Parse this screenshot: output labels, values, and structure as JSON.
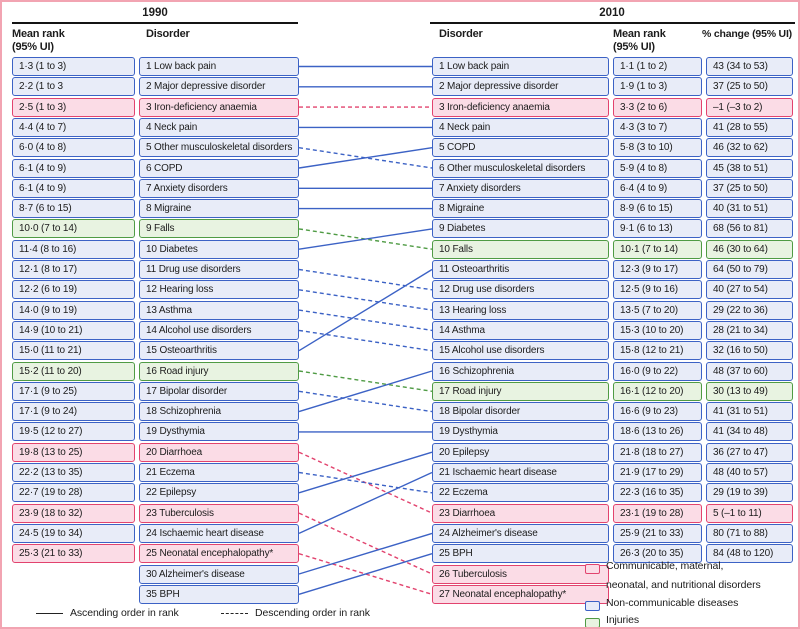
{
  "chart_data": {
    "type": "table",
    "subtype": "rank_slopegraph",
    "header": {
      "year_left": "1990",
      "year_right": "2010",
      "mean_rank": "Mean rank",
      "ui": "(95% UI)",
      "disorder": "Disorder",
      "pct_change": "% change (95% UI)"
    },
    "colors": {
      "ncd": "#3c62c5",
      "cmnn": "#e2436e",
      "inj": "#4f9b44",
      "frame": "#f2a4b2"
    },
    "rows_1990": [
      {
        "mean_rank": "1·3 (1 to 3)",
        "disorder": "1 Low back pain",
        "cat": "ncd"
      },
      {
        "mean_rank": "2·2 (1 to 3",
        "disorder": "2 Major depressive disorder",
        "cat": "ncd"
      },
      {
        "mean_rank": "2·5 (1 to 3)",
        "disorder": "3 Iron-deficiency anaemia",
        "cat": "cmnn"
      },
      {
        "mean_rank": "4·4 (4 to 7)",
        "disorder": "4 Neck pain",
        "cat": "ncd"
      },
      {
        "mean_rank": "6·0 (4 to 8)",
        "disorder": "5 Other musculoskeletal disorders",
        "cat": "ncd"
      },
      {
        "mean_rank": "6·1 (4 to 9)",
        "disorder": "6 COPD",
        "cat": "ncd"
      },
      {
        "mean_rank": "6·1 (4 to 9)",
        "disorder": "7 Anxiety disorders",
        "cat": "ncd"
      },
      {
        "mean_rank": "8·7 (6 to 15)",
        "disorder": "8 Migraine",
        "cat": "ncd"
      },
      {
        "mean_rank": "10·0 (7 to 14)",
        "disorder": "9 Falls",
        "cat": "inj"
      },
      {
        "mean_rank": "11·4 (8 to 16)",
        "disorder": "10 Diabetes",
        "cat": "ncd"
      },
      {
        "mean_rank": "12·1 (8 to 17)",
        "disorder": "11 Drug use disorders",
        "cat": "ncd"
      },
      {
        "mean_rank": "12·2 (6 to 19)",
        "disorder": "12 Hearing loss",
        "cat": "ncd"
      },
      {
        "mean_rank": "14·0 (9 to 19)",
        "disorder": "13 Asthma",
        "cat": "ncd"
      },
      {
        "mean_rank": "14·9 (10 to 21)",
        "disorder": "14 Alcohol use disorders",
        "cat": "ncd"
      },
      {
        "mean_rank": "15·0 (11 to 21)",
        "disorder": "15 Osteoarthritis",
        "cat": "ncd"
      },
      {
        "mean_rank": "15·2 (11 to 20)",
        "disorder": "16 Road injury",
        "cat": "inj"
      },
      {
        "mean_rank": "17·1 (9 to 25)",
        "disorder": "17 Bipolar disorder",
        "cat": "ncd"
      },
      {
        "mean_rank": "17·1 (9 to 24)",
        "disorder": "18 Schizophrenia",
        "cat": "ncd"
      },
      {
        "mean_rank": "19·5 (12 to 27)",
        "disorder": "19 Dysthymia",
        "cat": "ncd"
      },
      {
        "mean_rank": "19·8 (13 to 25)",
        "disorder": "20 Diarrhoea",
        "cat": "cmnn"
      },
      {
        "mean_rank": "22·2 (13 to 35)",
        "disorder": "21 Eczema",
        "cat": "ncd"
      },
      {
        "mean_rank": "22·7 (19 to 28)",
        "disorder": "22 Epilepsy",
        "cat": "ncd"
      },
      {
        "mean_rank": "23·9 (18 to 32)",
        "disorder": "23 Tuberculosis",
        "cat": "cmnn"
      },
      {
        "mean_rank": "24·5 (19 to 34)",
        "disorder": "24 Ischaemic heart disease",
        "cat": "ncd"
      },
      {
        "mean_rank": "25·3 (21 to 33)",
        "disorder": "25 Neonatal encephalopathy*",
        "cat": "cmnn"
      },
      {
        "mean_rank": null,
        "disorder": "30 Alzheimer's disease",
        "cat": "ncd"
      },
      {
        "mean_rank": null,
        "disorder": "35 BPH",
        "cat": "ncd"
      }
    ],
    "rows_2010": [
      {
        "disorder": "1 Low back pain",
        "mean_rank": "1·1 (1 to 2)",
        "pct_change": "43 (34 to 53)",
        "cat": "ncd"
      },
      {
        "disorder": "2 Major depressive disorder",
        "mean_rank": "1·9 (1 to 3)",
        "pct_change": "37 (25 to 50)",
        "cat": "ncd"
      },
      {
        "disorder": "3 Iron-deficiency anaemia",
        "mean_rank": "3·3 (2 to 6)",
        "pct_change": "–1 (–3 to 2)",
        "cat": "cmnn"
      },
      {
        "disorder": "4 Neck pain",
        "mean_rank": "4·3 (3 to 7)",
        "pct_change": "41 (28 to 55)",
        "cat": "ncd"
      },
      {
        "disorder": "5 COPD",
        "mean_rank": "5·8 (3 to 10)",
        "pct_change": "46 (32 to 62)",
        "cat": "ncd"
      },
      {
        "disorder": "6 Other musculoskeletal disorders",
        "mean_rank": "5·9 (4 to 8)",
        "pct_change": "45 (38 to 51)",
        "cat": "ncd"
      },
      {
        "disorder": "7 Anxiety disorders",
        "mean_rank": "6·4 (4 to 9)",
        "pct_change": "37 (25 to 50)",
        "cat": "ncd"
      },
      {
        "disorder": "8 Migraine",
        "mean_rank": "8·9 (6 to 15)",
        "pct_change": "40 (31 to 51)",
        "cat": "ncd"
      },
      {
        "disorder": "9 Diabetes",
        "mean_rank": "9·1 (6 to 13)",
        "pct_change": "68 (56 to 81)",
        "cat": "ncd"
      },
      {
        "disorder": "10 Falls",
        "mean_rank": "10·1 (7 to 14)",
        "pct_change": "46 (30 to 64)",
        "cat": "inj"
      },
      {
        "disorder": "11 Osteoarthritis",
        "mean_rank": "12·3 (9 to 17)",
        "pct_change": "64 (50 to 79)",
        "cat": "ncd"
      },
      {
        "disorder": "12 Drug use disorders",
        "mean_rank": "12·5 (9 to 16)",
        "pct_change": "40 (27 to 54)",
        "cat": "ncd"
      },
      {
        "disorder": "13 Hearing loss",
        "mean_rank": "13·5 (7 to 20)",
        "pct_change": "29 (22 to 36)",
        "cat": "ncd"
      },
      {
        "disorder": "14 Asthma",
        "mean_rank": "15·3 (10 to 20)",
        "pct_change": "28 (21 to 34)",
        "cat": "ncd"
      },
      {
        "disorder": "15 Alcohol use disorders",
        "mean_rank": "15·8 (12 to 21)",
        "pct_change": "32 (16 to 50)",
        "cat": "ncd"
      },
      {
        "disorder": "16 Schizophrenia",
        "mean_rank": "16·0 (9 to 22)",
        "pct_change": "48 (37 to 60)",
        "cat": "ncd"
      },
      {
        "disorder": "17 Road injury",
        "mean_rank": "16·1 (12 to 20)",
        "pct_change": "30 (13 to 49)",
        "cat": "inj"
      },
      {
        "disorder": "18 Bipolar disorder",
        "mean_rank": "16·6 (9 to 23)",
        "pct_change": "41 (31 to 51)",
        "cat": "ncd"
      },
      {
        "disorder": "19 Dysthymia",
        "mean_rank": "18·6 (13 to 26)",
        "pct_change": "41 (34 to 48)",
        "cat": "ncd"
      },
      {
        "disorder": "20 Epilepsy",
        "mean_rank": "21·8 (18 to 27)",
        "pct_change": "36 (27 to 47)",
        "cat": "ncd"
      },
      {
        "disorder": "21 Ischaemic heart disease",
        "mean_rank": "21·9 (17 to 29)",
        "pct_change": "48 (40 to 57)",
        "cat": "ncd"
      },
      {
        "disorder": "22 Eczema",
        "mean_rank": "22·3 (16 to 35)",
        "pct_change": "29 (19 to 39)",
        "cat": "ncd"
      },
      {
        "disorder": "23 Diarrhoea",
        "mean_rank": "23·1 (19 to 28)",
        "pct_change": "5 (–1 to 11)",
        "cat": "cmnn"
      },
      {
        "disorder": "24 Alzheimer's disease",
        "mean_rank": "25·9 (21 to 33)",
        "pct_change": "80 (71 to 88)",
        "cat": "ncd"
      },
      {
        "disorder": "25 BPH",
        "mean_rank": "26·3 (20 to 35)",
        "pct_change": "84 (48 to 120)",
        "cat": "ncd"
      },
      {
        "disorder": "26 Tuberculosis",
        "mean_rank": null,
        "pct_change": null,
        "cat": "cmnn"
      },
      {
        "disorder": "27 Neonatal encephalopathy*",
        "mean_rank": null,
        "pct_change": null,
        "cat": "cmnn"
      }
    ],
    "links": [
      {
        "from": 0,
        "to": 0,
        "style": "solid",
        "cat": "ncd"
      },
      {
        "from": 1,
        "to": 1,
        "style": "solid",
        "cat": "ncd"
      },
      {
        "from": 2,
        "to": 2,
        "style": "dashed",
        "cat": "cmnn"
      },
      {
        "from": 3,
        "to": 3,
        "style": "solid",
        "cat": "ncd"
      },
      {
        "from": 4,
        "to": 5,
        "style": "dashed",
        "cat": "ncd"
      },
      {
        "from": 5,
        "to": 4,
        "style": "solid",
        "cat": "ncd"
      },
      {
        "from": 6,
        "to": 6,
        "style": "solid",
        "cat": "ncd"
      },
      {
        "from": 7,
        "to": 7,
        "style": "solid",
        "cat": "ncd"
      },
      {
        "from": 8,
        "to": 9,
        "style": "dashed",
        "cat": "inj"
      },
      {
        "from": 9,
        "to": 8,
        "style": "solid",
        "cat": "ncd"
      },
      {
        "from": 10,
        "to": 11,
        "style": "dashed",
        "cat": "ncd"
      },
      {
        "from": 11,
        "to": 12,
        "style": "dashed",
        "cat": "ncd"
      },
      {
        "from": 12,
        "to": 13,
        "style": "dashed",
        "cat": "ncd"
      },
      {
        "from": 13,
        "to": 14,
        "style": "dashed",
        "cat": "ncd"
      },
      {
        "from": 14,
        "to": 10,
        "style": "solid",
        "cat": "ncd"
      },
      {
        "from": 15,
        "to": 16,
        "style": "dashed",
        "cat": "inj"
      },
      {
        "from": 16,
        "to": 17,
        "style": "dashed",
        "cat": "ncd"
      },
      {
        "from": 17,
        "to": 15,
        "style": "solid",
        "cat": "ncd"
      },
      {
        "from": 18,
        "to": 18,
        "style": "solid",
        "cat": "ncd"
      },
      {
        "from": 19,
        "to": 22,
        "style": "dashed",
        "cat": "cmnn"
      },
      {
        "from": 20,
        "to": 21,
        "style": "dashed",
        "cat": "ncd"
      },
      {
        "from": 21,
        "to": 19,
        "style": "solid",
        "cat": "ncd"
      },
      {
        "from": 22,
        "to": 25,
        "style": "dashed",
        "cat": "cmnn"
      },
      {
        "from": 23,
        "to": 20,
        "style": "solid",
        "cat": "ncd"
      },
      {
        "from": 24,
        "to": 26,
        "style": "dashed",
        "cat": "cmnn"
      },
      {
        "from": 25,
        "to": 23,
        "style": "solid",
        "cat": "ncd"
      },
      {
        "from": 26,
        "to": 24,
        "style": "solid",
        "cat": "ncd"
      }
    ],
    "legend": {
      "ascending": "Ascending order in rank",
      "descending": "Descending order in rank",
      "categories": [
        {
          "cat": "cmnn",
          "line1": "Communicable, maternal,",
          "line2": "neonatal, and nutritional disorders"
        },
        {
          "cat": "ncd",
          "line1": "Non-communicable diseases",
          "line2": ""
        },
        {
          "cat": "inj",
          "line1": "Injuries",
          "line2": ""
        }
      ]
    }
  }
}
